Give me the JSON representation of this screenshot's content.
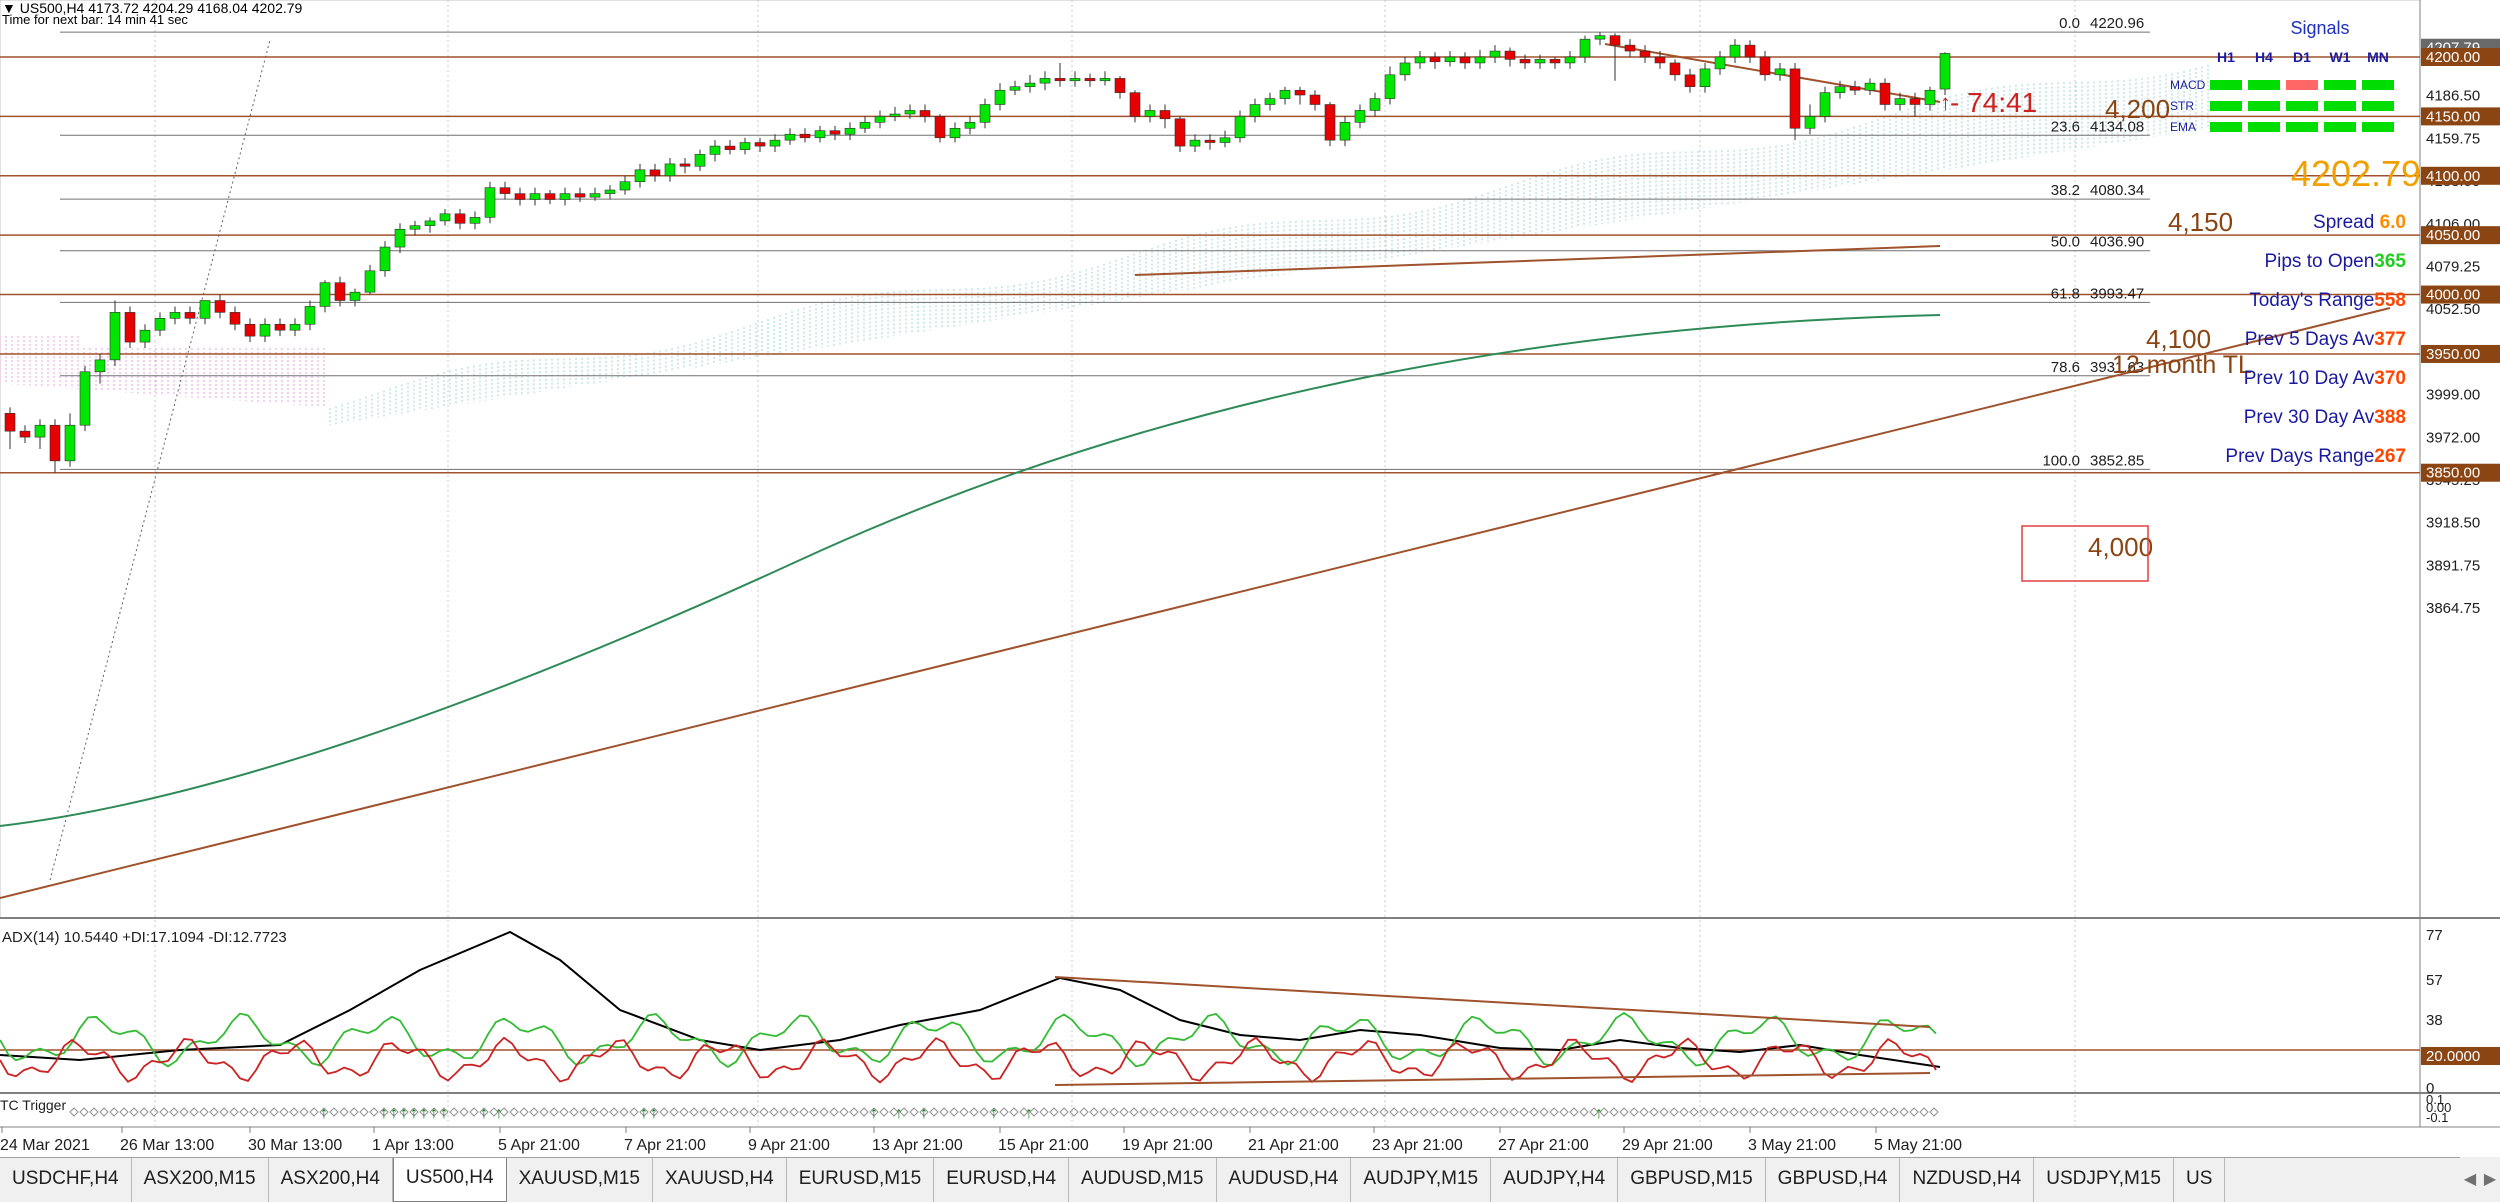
{
  "header": {
    "line1": "▼ US500,H4  4173.72 4204.29 4168.04 4202.79",
    "line2": "Time for next bar: 14 min 41 sec"
  },
  "price_axis": [
    "4213.25",
    "4186.50",
    "4159.75",
    "4133.00",
    "4106.00",
    "4079.25",
    "4052.50",
    "4025.75",
    "3999.00",
    "3972.00",
    "3945.25",
    "3918.50",
    "3891.75",
    "3864.75"
  ],
  "price_tags": [
    {
      "label": "4207.79",
      "color": "#696969"
    },
    {
      "label": "4200.00",
      "color": "#8b4513"
    },
    {
      "label": "4150.00",
      "color": "#8b4513"
    },
    {
      "label": "4100.00",
      "color": "#8b4513"
    },
    {
      "label": "4050.00",
      "color": "#8b4513"
    },
    {
      "label": "4000.00",
      "color": "#8b4513"
    },
    {
      "label": "3950.00",
      "color": "#8b4513"
    },
    {
      "label": "3850.00",
      "color": "#8b4513"
    }
  ],
  "fib_levels": [
    {
      "ratio": "0.0",
      "price": "4220.96"
    },
    {
      "ratio": "23.6",
      "price": "4134.08"
    },
    {
      "ratio": "38.2",
      "price": "4080.34"
    },
    {
      "ratio": "50.0",
      "price": "4036.90"
    },
    {
      "ratio": "61.8",
      "price": "3993.47"
    },
    {
      "ratio": "78.6",
      "price": "3931.63"
    },
    {
      "ratio": "100.0",
      "price": "3852.85"
    }
  ],
  "level_labels": [
    "4,200",
    "4,150",
    "4,100",
    "4,000"
  ],
  "trendline_label": "12 month TL",
  "countdown": "- 74:41",
  "signals": {
    "title": "Signals",
    "timeframes": [
      "H1",
      "H4",
      "D1",
      "W1",
      "MN"
    ],
    "rows": [
      {
        "name": "MACD",
        "colors": [
          "#00dd00",
          "#00dd00",
          "#ff6666",
          "#00dd00",
          "#00dd00"
        ]
      },
      {
        "name": "STR",
        "colors": [
          "#00dd00",
          "#00dd00",
          "#00dd00",
          "#00dd00",
          "#00dd00"
        ]
      },
      {
        "name": "EMA",
        "colors": [
          "#00dd00",
          "#00dd00",
          "#00dd00",
          "#00dd00",
          "#00dd00"
        ]
      }
    ]
  },
  "current_price": "4202.79",
  "stats": [
    {
      "label": "Spread",
      "value": "6.0",
      "value_color": "#ff8c00"
    },
    {
      "label": "Pips to Open",
      "value": "365",
      "value_color": "#22cc22"
    },
    {
      "label": "Today's Range",
      "value": "558",
      "value_color": "#ff4500"
    },
    {
      "label": "Prev 5 Days Av",
      "value": "377",
      "value_color": "#ff4500"
    },
    {
      "label": "Prev 10 Day Av",
      "value": "370",
      "value_color": "#ff4500"
    },
    {
      "label": "Prev 30 Day Av",
      "value": "388",
      "value_color": "#ff4500"
    },
    {
      "label": "Prev Days Range",
      "value": "267",
      "value_color": "#ff4500"
    }
  ],
  "adx": {
    "title": "ADX(14) 10.5440 +DI:17.1094 -DI:12.7723",
    "axis": [
      "77",
      "57",
      "38",
      "20.0000",
      "0"
    ],
    "colors": {
      "adx": "#000000",
      "plus_di": "#33bb33",
      "minus_di": "#cc2222"
    }
  },
  "tc_trigger": {
    "title": "TC Trigger",
    "axis": [
      "0.1",
      "0.00",
      "-0.1"
    ]
  },
  "time_axis": [
    "24 Mar 2021",
    "26 Mar 13:00",
    "30 Mar 13:00",
    "1 Apr 13:00",
    "5 Apr 21:00",
    "7 Apr 21:00",
    "9 Apr 21:00",
    "13 Apr 21:00",
    "15 Apr 21:00",
    "19 Apr 21:00",
    "21 Apr 21:00",
    "23 Apr 21:00",
    "27 Apr 21:00",
    "29 Apr 21:00",
    "3 May 21:00",
    "5 May 21:00"
  ],
  "tabs": [
    "USDCHF,H4",
    "ASX200,M15",
    "ASX200,H4",
    "US500,H4",
    "XAUUSD,M15",
    "XAUUSD,H4",
    "EURUSD,M15",
    "EURUSD,H4",
    "AUDUSD,M15",
    "AUDUSD,H4",
    "AUDJPY,M15",
    "AUDJPY,H4",
    "GBPUSD,M15",
    "GBPUSD,H4",
    "NZDUSD,H4",
    "USDJPY,M15",
    "US"
  ],
  "active_tab": "US500,H4",
  "colors": {
    "bull": "#00e600",
    "bear": "#e60000",
    "level_line": "#a0522d",
    "ema_line": "#2e8b57",
    "trend_line": "#a0522d",
    "cloud_bull": "#9ad4de",
    "cloud_bear": "#e8a0e0"
  }
}
